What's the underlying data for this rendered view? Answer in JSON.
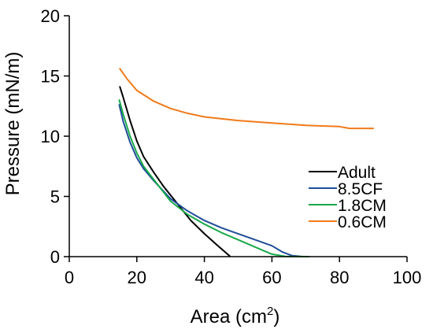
{
  "chart_data": {
    "type": "line",
    "title": "",
    "xlabel": "Area (cm",
    "xlabel_sup": "2",
    "xlabel_close": ")",
    "ylabel": "Pressure (mN/m)",
    "xlim": [
      0,
      100
    ],
    "ylim": [
      0,
      20
    ],
    "xticks": [
      "0",
      "20",
      "40",
      "60",
      "80",
      "100"
    ],
    "yticks": [
      "0",
      "5",
      "10",
      "15",
      "20"
    ],
    "grid": false,
    "legend_position": "middle-right",
    "series": [
      {
        "name": "Adult",
        "color": "#000000",
        "points": [
          [
            15,
            14.1
          ],
          [
            16,
            13.2
          ],
          [
            18,
            11.3
          ],
          [
            20,
            9.6
          ],
          [
            22,
            8.3
          ],
          [
            25,
            7.0
          ],
          [
            28,
            5.8
          ],
          [
            32,
            4.4
          ],
          [
            36,
            3.0
          ],
          [
            40,
            1.9
          ],
          [
            44,
            0.9
          ],
          [
            47.5,
            0.05
          ]
        ]
      },
      {
        "name": "8.5CF",
        "color": "#1f4e99",
        "points": [
          [
            14.8,
            12.6
          ],
          [
            16,
            11.2
          ],
          [
            18,
            9.5
          ],
          [
            20,
            8.2
          ],
          [
            22,
            7.3
          ],
          [
            25,
            6.3
          ],
          [
            30,
            4.8
          ],
          [
            35,
            3.8
          ],
          [
            40,
            3.0
          ],
          [
            45,
            2.4
          ],
          [
            50,
            1.9
          ],
          [
            55,
            1.4
          ],
          [
            60,
            0.9
          ],
          [
            63,
            0.4
          ],
          [
            66,
            0.08
          ],
          [
            69,
            0.0
          ]
        ]
      },
      {
        "name": "1.8CM",
        "color": "#1aa84a",
        "points": [
          [
            14.8,
            13.0
          ],
          [
            16,
            11.8
          ],
          [
            18,
            10.0
          ],
          [
            20,
            8.6
          ],
          [
            22,
            7.5
          ],
          [
            25,
            6.4
          ],
          [
            30,
            4.6
          ],
          [
            35,
            3.5
          ],
          [
            40,
            2.7
          ],
          [
            45,
            2.0
          ],
          [
            50,
            1.4
          ],
          [
            55,
            0.8
          ],
          [
            60,
            0.2
          ],
          [
            64,
            0.02
          ],
          [
            71,
            0.0
          ]
        ]
      },
      {
        "name": "0.6CM",
        "color": "#f07a1a",
        "points": [
          [
            15,
            15.6
          ],
          [
            17,
            14.8
          ],
          [
            20,
            13.8
          ],
          [
            25,
            12.9
          ],
          [
            30,
            12.3
          ],
          [
            35,
            11.9
          ],
          [
            40,
            11.6
          ],
          [
            50,
            11.3
          ],
          [
            60,
            11.1
          ],
          [
            70,
            10.9
          ],
          [
            80,
            10.8
          ],
          [
            83,
            10.65
          ],
          [
            90,
            10.65
          ]
        ]
      }
    ]
  }
}
